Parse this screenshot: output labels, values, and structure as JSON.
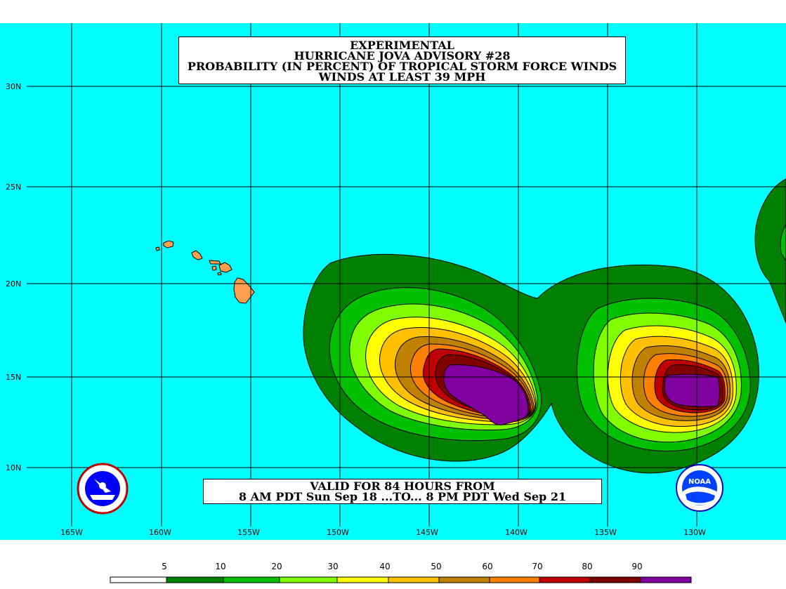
{
  "title": {
    "line1": "EXPERIMENTAL",
    "line2": "HURRICANE JOVA ADVISORY #28",
    "line3": "PROBABILITY (IN PERCENT) OF TROPICAL STORM FORCE WINDS",
    "line4": "WINDS AT LEAST 39 MPH"
  },
  "valid": {
    "line1": "VALID FOR 84 HOURS FROM",
    "line2": "8 AM PDT Sun Sep 18 ...TO... 8 PM PDT Wed Sep 21"
  },
  "lat_labels": [
    "30N",
    "25N",
    "20N",
    "15N",
    "10N"
  ],
  "lon_labels": [
    "165W",
    "160W",
    "155W",
    "150W",
    "145W",
    "140W",
    "135W",
    "130W"
  ],
  "legend": {
    "labels": [
      "5",
      "10",
      "20",
      "30",
      "40",
      "50",
      "60",
      "70",
      "80",
      "90"
    ],
    "colors": [
      "#ffffff",
      "#008000",
      "#00c000",
      "#80ff00",
      "#ffff00",
      "#ffc000",
      "#c08000",
      "#ff8000",
      "#c00000",
      "#800000",
      "#8000a0"
    ]
  },
  "colors": {
    "ocean": "#00ffff",
    "land": "#ffa050",
    "c10": "#008000",
    "c20": "#00c000",
    "c30": "#80ff00",
    "c40": "#ffff00",
    "c50": "#ffc000",
    "c60": "#c08000",
    "c70": "#ff8000",
    "c80": "#c00000",
    "c90": "#800000",
    "c100": "#8000a0"
  },
  "logos": {
    "nws": "nws-seal-icon",
    "noaa": "noaa-logo-icon"
  }
}
